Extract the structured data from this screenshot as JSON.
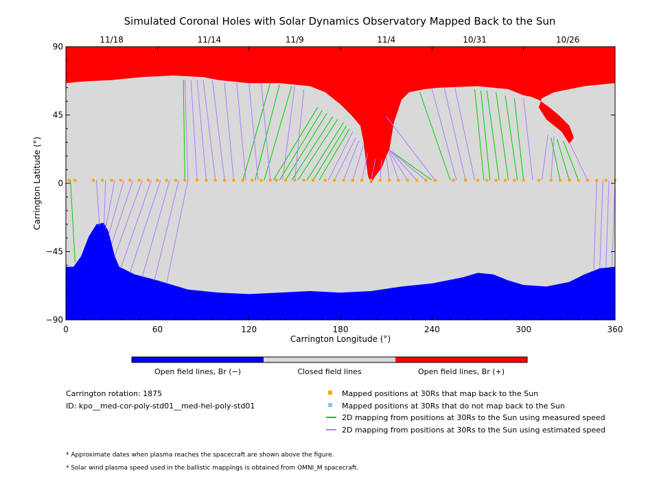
{
  "chart_data": {
    "type": "map",
    "title": "Simulated Coronal Holes with Solar Dynamics Observatory Mapped Back to the Sun",
    "xlabel": "Carrington Longitude (°)",
    "ylabel": "Carrington Latitude (°)",
    "xlim": [
      0,
      360
    ],
    "ylim": [
      -90,
      90
    ],
    "x_ticks": [
      "0",
      "60",
      "120",
      "180",
      "240",
      "300",
      "360"
    ],
    "y_ticks": [
      "90",
      "45",
      "0",
      "-45",
      "-90"
    ],
    "top_axis": {
      "labels": [
        {
          "lon": 30,
          "text": "11/18"
        },
        {
          "lon": 94,
          "text": "11/14"
        },
        {
          "lon": 150,
          "text": "11/9"
        },
        {
          "lon": 210,
          "text": "11/4"
        },
        {
          "lon": 268,
          "text": "10/31"
        },
        {
          "lon": 329,
          "text": "10/26"
        }
      ]
    },
    "regions": {
      "north_open": {
        "polarity": "+",
        "boundary": [
          [
            0,
            66
          ],
          [
            10,
            67
          ],
          [
            30,
            68
          ],
          [
            50,
            70
          ],
          [
            70,
            71
          ],
          [
            90,
            70
          ],
          [
            100,
            68
          ],
          [
            120,
            66
          ],
          [
            140,
            66
          ],
          [
            160,
            64
          ],
          [
            170,
            60
          ],
          [
            180,
            52
          ],
          [
            187,
            45
          ],
          [
            193,
            38
          ],
          [
            195,
            28
          ],
          [
            196,
            20
          ],
          [
            198,
            5
          ],
          [
            200,
            0
          ],
          [
            203,
            5
          ],
          [
            207,
            10
          ],
          [
            210,
            18
          ],
          [
            212,
            22
          ],
          [
            213,
            28
          ],
          [
            215,
            40
          ],
          [
            220,
            55
          ],
          [
            225,
            60
          ],
          [
            235,
            62
          ],
          [
            245,
            63
          ],
          [
            270,
            64
          ],
          [
            290,
            62
          ],
          [
            300,
            58
          ],
          [
            305,
            57
          ],
          [
            310,
            55
          ],
          [
            317,
            50
          ],
          [
            323,
            45
          ],
          [
            330,
            38
          ],
          [
            333,
            30
          ],
          [
            330,
            26
          ],
          [
            325,
            34
          ],
          [
            315,
            42
          ],
          [
            310,
            50
          ],
          [
            312,
            56
          ],
          [
            320,
            60
          ],
          [
            340,
            64
          ],
          [
            360,
            66
          ]
        ]
      },
      "south_open": {
        "polarity": "-",
        "boundary": [
          [
            0,
            -55
          ],
          [
            5,
            -55
          ],
          [
            10,
            -48
          ],
          [
            15,
            -35
          ],
          [
            20,
            -27
          ],
          [
            25,
            -26
          ],
          [
            28,
            -32
          ],
          [
            30,
            -40
          ],
          [
            32,
            -48
          ],
          [
            35,
            -55
          ],
          [
            45,
            -60
          ],
          [
            60,
            -64
          ],
          [
            80,
            -70
          ],
          [
            100,
            -72
          ],
          [
            120,
            -73
          ],
          [
            140,
            -72
          ],
          [
            160,
            -71
          ],
          [
            180,
            -72
          ],
          [
            200,
            -71
          ],
          [
            220,
            -68
          ],
          [
            240,
            -66
          ],
          [
            260,
            -62
          ],
          [
            270,
            -59
          ],
          [
            280,
            -60
          ],
          [
            290,
            -64
          ],
          [
            300,
            -67
          ],
          [
            315,
            -68
          ],
          [
            330,
            -65
          ],
          [
            340,
            -60
          ],
          [
            350,
            -56
          ],
          [
            360,
            -55
          ]
        ]
      }
    },
    "mapped_points_lon": [
      2,
      6,
      18,
      24,
      30,
      36,
      42,
      48,
      54,
      60,
      66,
      72,
      78,
      86,
      92,
      98,
      104,
      110,
      116,
      122,
      128,
      134,
      138,
      144,
      150,
      156,
      162,
      170,
      176,
      182,
      188,
      194,
      200,
      206,
      212,
      218,
      224,
      230,
      236,
      242,
      254,
      262,
      270,
      276,
      282,
      288,
      294,
      300,
      310,
      318,
      324,
      330,
      336,
      342,
      348,
      354,
      360
    ],
    "mapped_points_lat": 2,
    "mapping_lines": [
      {
        "lon": 78,
        "sun_lon": 77,
        "sun_lat": 68,
        "speed": "measured"
      },
      {
        "lon": 116,
        "sun_lon": 134,
        "sun_lat": 66,
        "speed": "measured"
      },
      {
        "lon": 124,
        "sun_lon": 140,
        "sun_lat": 65,
        "speed": "measured"
      },
      {
        "lon": 130,
        "sun_lon": 148,
        "sun_lat": 64,
        "speed": "measured"
      },
      {
        "lon": 136,
        "sun_lon": 165,
        "sun_lat": 50,
        "speed": "measured"
      },
      {
        "lon": 140,
        "sun_lon": 168,
        "sun_lat": 48,
        "speed": "measured"
      },
      {
        "lon": 144,
        "sun_lon": 171,
        "sun_lat": 46,
        "speed": "measured"
      },
      {
        "lon": 148,
        "sun_lon": 175,
        "sun_lat": 44,
        "speed": "measured"
      },
      {
        "lon": 152,
        "sun_lon": 178,
        "sun_lat": 42,
        "speed": "measured"
      },
      {
        "lon": 158,
        "sun_lon": 182,
        "sun_lat": 40,
        "speed": "measured"
      },
      {
        "lon": 162,
        "sun_lon": 184,
        "sun_lat": 38,
        "speed": "measured"
      },
      {
        "lon": 166,
        "sun_lon": 186,
        "sun_lat": 36,
        "speed": "measured"
      },
      {
        "lon": 240,
        "sun_lon": 212,
        "sun_lat": 22,
        "speed": "measured"
      },
      {
        "lon": 252,
        "sun_lon": 232,
        "sun_lat": 60,
        "speed": "measured"
      },
      {
        "lon": 274,
        "sun_lon": 268,
        "sun_lat": 62,
        "speed": "measured"
      },
      {
        "lon": 278,
        "sun_lon": 272,
        "sun_lat": 61,
        "speed": "measured"
      },
      {
        "lon": 284,
        "sun_lon": 276,
        "sun_lat": 61,
        "speed": "measured"
      },
      {
        "lon": 290,
        "sun_lon": 282,
        "sun_lat": 60,
        "speed": "measured"
      },
      {
        "lon": 296,
        "sun_lon": 288,
        "sun_lat": 58,
        "speed": "measured"
      },
      {
        "lon": 300,
        "sun_lon": 294,
        "sun_lat": 56,
        "speed": "measured"
      },
      {
        "lon": 324,
        "sun_lon": 318,
        "sun_lat": 30,
        "speed": "measured"
      },
      {
        "lon": 330,
        "sun_lon": 322,
        "sun_lat": 29,
        "speed": "measured"
      },
      {
        "lon": 336,
        "sun_lon": 326,
        "sun_lat": 28,
        "speed": "measured"
      },
      {
        "lon": 3,
        "sun_lon": 6,
        "sun_lat": -52,
        "speed": "measured"
      },
      {
        "lon": 80,
        "sun_lon": 78,
        "sun_lat": 68,
        "speed": "estimated"
      },
      {
        "lon": 86,
        "sun_lon": 82,
        "sun_lat": 68,
        "speed": "estimated"
      },
      {
        "lon": 92,
        "sun_lon": 86,
        "sun_lat": 68,
        "speed": "estimated"
      },
      {
        "lon": 98,
        "sun_lon": 90,
        "sun_lat": 68,
        "speed": "estimated"
      },
      {
        "lon": 104,
        "sun_lon": 96,
        "sun_lat": 68,
        "speed": "estimated"
      },
      {
        "lon": 110,
        "sun_lon": 104,
        "sun_lat": 66,
        "speed": "estimated"
      },
      {
        "lon": 118,
        "sun_lon": 112,
        "sun_lat": 66,
        "speed": "estimated"
      },
      {
        "lon": 126,
        "sun_lon": 120,
        "sun_lat": 66,
        "speed": "estimated"
      },
      {
        "lon": 134,
        "sun_lon": 128,
        "sun_lat": 66,
        "speed": "estimated"
      },
      {
        "lon": 142,
        "sun_lon": 150,
        "sun_lat": 64,
        "speed": "estimated"
      },
      {
        "lon": 150,
        "sun_lon": 156,
        "sun_lat": 62,
        "speed": "estimated"
      },
      {
        "lon": 172,
        "sun_lon": 188,
        "sun_lat": 34,
        "speed": "estimated"
      },
      {
        "lon": 176,
        "sun_lon": 190,
        "sun_lat": 30,
        "speed": "estimated"
      },
      {
        "lon": 182,
        "sun_lon": 192,
        "sun_lat": 28,
        "speed": "estimated"
      },
      {
        "lon": 188,
        "sun_lon": 195,
        "sun_lat": 25,
        "speed": "estimated"
      },
      {
        "lon": 194,
        "sun_lon": 198,
        "sun_lat": 20,
        "speed": "estimated"
      },
      {
        "lon": 200,
        "sun_lon": 203,
        "sun_lat": 16,
        "speed": "estimated"
      },
      {
        "lon": 206,
        "sun_lon": 207,
        "sun_lat": 16,
        "speed": "estimated"
      },
      {
        "lon": 212,
        "sun_lon": 210,
        "sun_lat": 18,
        "speed": "estimated"
      },
      {
        "lon": 218,
        "sun_lon": 212,
        "sun_lat": 20,
        "speed": "estimated"
      },
      {
        "lon": 224,
        "sun_lon": 212,
        "sun_lat": 21,
        "speed": "estimated"
      },
      {
        "lon": 230,
        "sun_lon": 212,
        "sun_lat": 22,
        "speed": "estimated"
      },
      {
        "lon": 236,
        "sun_lon": 212,
        "sun_lat": 22,
        "speed": "estimated"
      },
      {
        "lon": 242,
        "sun_lon": 210,
        "sun_lat": 44,
        "speed": "estimated"
      },
      {
        "lon": 256,
        "sun_lon": 240,
        "sun_lat": 62,
        "speed": "estimated"
      },
      {
        "lon": 262,
        "sun_lon": 248,
        "sun_lat": 63,
        "speed": "estimated"
      },
      {
        "lon": 268,
        "sun_lon": 255,
        "sun_lat": 63,
        "speed": "estimated"
      },
      {
        "lon": 306,
        "sun_lon": 300,
        "sun_lat": 56,
        "speed": "estimated"
      },
      {
        "lon": 312,
        "sun_lon": 316,
        "sun_lat": 32,
        "speed": "estimated"
      },
      {
        "lon": 318,
        "sun_lon": 320,
        "sun_lat": 31,
        "speed": "estimated"
      },
      {
        "lon": 342,
        "sun_lon": 330,
        "sun_lat": 27,
        "speed": "estimated"
      },
      {
        "lon": 20,
        "sun_lon": 22,
        "sun_lat": -28,
        "speed": "estimated"
      },
      {
        "lon": 26,
        "sun_lon": 25,
        "sun_lat": -28,
        "speed": "estimated"
      },
      {
        "lon": 32,
        "sun_lon": 26,
        "sun_lat": -30,
        "speed": "estimated"
      },
      {
        "lon": 38,
        "sun_lon": 28,
        "sun_lat": -34,
        "speed": "estimated"
      },
      {
        "lon": 44,
        "sun_lon": 30,
        "sun_lat": -40,
        "speed": "estimated"
      },
      {
        "lon": 50,
        "sun_lon": 32,
        "sun_lat": -48,
        "speed": "estimated"
      },
      {
        "lon": 56,
        "sun_lon": 36,
        "sun_lat": -56,
        "speed": "estimated"
      },
      {
        "lon": 62,
        "sun_lon": 42,
        "sun_lat": -59,
        "speed": "estimated"
      },
      {
        "lon": 68,
        "sun_lon": 50,
        "sun_lat": -62,
        "speed": "estimated"
      },
      {
        "lon": 74,
        "sun_lon": 58,
        "sun_lat": -64,
        "speed": "estimated"
      },
      {
        "lon": 80,
        "sun_lon": 66,
        "sun_lat": -66,
        "speed": "estimated"
      },
      {
        "lon": 348,
        "sun_lon": 346,
        "sun_lat": -57,
        "speed": "estimated"
      },
      {
        "lon": 352,
        "sun_lon": 350,
        "sun_lat": -56,
        "speed": "estimated"
      },
      {
        "lon": 356,
        "sun_lon": 354,
        "sun_lat": -55,
        "speed": "estimated"
      },
      {
        "lon": 360,
        "sun_lon": 358,
        "sun_lat": -55,
        "speed": "estimated"
      }
    ],
    "colors": {
      "north_open": "#ff0000",
      "south_open": "#0000ff",
      "closed": "#d9d9d9",
      "mapped_point": "#ffa500",
      "unmapped_point": "#87c8f0",
      "measured_line": "#00cc00",
      "estimated_line": "#b07aff"
    }
  },
  "colorbar": {
    "labels": [
      "Open field lines, Br (−)",
      "Closed field lines",
      "Open field lines, Br (+)"
    ]
  },
  "info": {
    "rotation": "Carrington rotation: 1875",
    "id": "ID: kpo__med-cor-poly-std01__med-hel-poly-std01"
  },
  "legend": [
    {
      "text": "Mapped positions at 30Rs that map back to the Sun",
      "marker": "square",
      "color": "#ffa500"
    },
    {
      "text": "Mapped positions at 30Rs that do not map back to the Sun",
      "marker": "square",
      "color": "#87c8f0"
    },
    {
      "text": "2D mapping from positions at 30Rs to the Sun using measured speed",
      "marker": "line",
      "color": "#00cc00"
    },
    {
      "text": "2D mapping from positions at 30Rs to the Sun using estimated speed",
      "marker": "line",
      "color": "#b07aff"
    }
  ],
  "notes": [
    "* Approximate dates when plasma reaches the spacecraft are shown above the figure.",
    "* Solar wind plasma speed used in the ballistic mappings is obtained from OMNI_M spacecraft."
  ]
}
